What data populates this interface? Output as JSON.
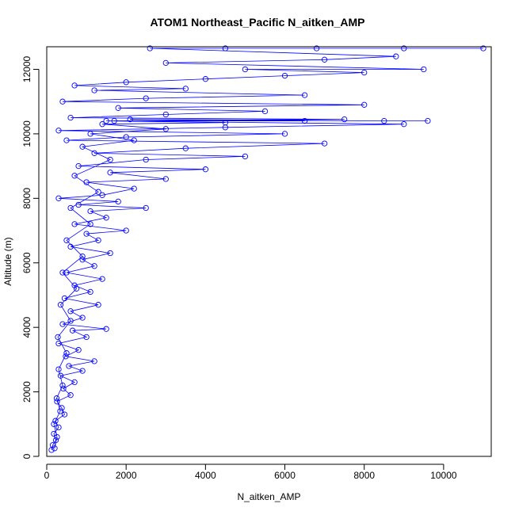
{
  "chart_data": {
    "type": "scatter",
    "title": "ATOM1 Northeast_Pacific N_aitken_AMP",
    "xlabel": "N_aitken_AMP",
    "ylabel": "Altitude (m)",
    "xlim": [
      0,
      11200
    ],
    "ylim": [
      0,
      12700
    ],
    "xticks": [
      0,
      2000,
      4000,
      6000,
      8000,
      10000
    ],
    "yticks": [
      0,
      2000,
      4000,
      6000,
      8000,
      10000,
      12000
    ],
    "grid": false,
    "legend": "none",
    "style": {
      "point_color": "#0000ff",
      "line_color": "#0000ff",
      "marker": "open-circle",
      "connected": true
    },
    "series": [
      {
        "points": [
          [
            120,
            200
          ],
          [
            150,
            350
          ],
          [
            230,
            500
          ],
          [
            180,
            700
          ],
          [
            300,
            900
          ],
          [
            220,
            1100
          ],
          [
            450,
            1300
          ],
          [
            380,
            1500
          ],
          [
            260,
            1700
          ],
          [
            600,
            1900
          ],
          [
            420,
            2100
          ],
          [
            700,
            2300
          ],
          [
            350,
            2500
          ],
          [
            900,
            2650
          ],
          [
            560,
            2800
          ],
          [
            1200,
            2950
          ],
          [
            480,
            3100
          ],
          [
            800,
            3300
          ],
          [
            300,
            3500
          ],
          [
            1000,
            3700
          ],
          [
            650,
            3900
          ],
          [
            1500,
            3950
          ],
          [
            400,
            4100
          ],
          [
            900,
            4300
          ],
          [
            600,
            4500
          ],
          [
            1300,
            4700
          ],
          [
            450,
            4900
          ],
          [
            1100,
            5100
          ],
          [
            700,
            5300
          ],
          [
            1400,
            5500
          ],
          [
            500,
            5700
          ],
          [
            1200,
            5900
          ],
          [
            900,
            6100
          ],
          [
            1600,
            6300
          ],
          [
            600,
            6500
          ],
          [
            1300,
            6700
          ],
          [
            1000,
            6900
          ],
          [
            2000,
            7000
          ],
          [
            700,
            7200
          ],
          [
            1500,
            7400
          ],
          [
            1100,
            7600
          ],
          [
            2500,
            7700
          ],
          [
            800,
            7800
          ],
          [
            1800,
            7900
          ],
          [
            300,
            8000
          ],
          [
            1400,
            8100
          ],
          [
            2200,
            8300
          ],
          [
            1000,
            8500
          ],
          [
            3000,
            8600
          ],
          [
            1600,
            8800
          ],
          [
            4000,
            8900
          ],
          [
            800,
            9000
          ],
          [
            2500,
            9200
          ],
          [
            5000,
            9300
          ],
          [
            1200,
            9400
          ],
          [
            3500,
            9550
          ],
          [
            7000,
            9700
          ],
          [
            500,
            9800
          ],
          [
            2000,
            9900
          ],
          [
            6000,
            10000
          ],
          [
            300,
            10100
          ],
          [
            4500,
            10200
          ],
          [
            9000,
            10300
          ],
          [
            1500,
            10400
          ],
          [
            7500,
            10450
          ],
          [
            600,
            10500
          ],
          [
            3000,
            10600
          ],
          [
            5500,
            10700
          ],
          [
            1800,
            10800
          ],
          [
            8000,
            10900
          ],
          [
            400,
            11000
          ],
          [
            2500,
            11100
          ],
          [
            6500,
            11200
          ],
          [
            1200,
            11350
          ],
          [
            3500,
            11400
          ],
          [
            700,
            11500
          ],
          [
            2000,
            11600
          ],
          [
            4000,
            11700
          ],
          [
            6000,
            11800
          ],
          [
            8000,
            11900
          ],
          [
            5000,
            12000
          ],
          [
            9500,
            12000
          ],
          [
            3000,
            12200
          ],
          [
            7000,
            12300
          ],
          [
            8800,
            12400
          ],
          [
            2600,
            12650
          ],
          [
            4500,
            12650
          ],
          [
            6800,
            12650
          ],
          [
            9000,
            12650
          ],
          [
            11000,
            12650
          ]
        ]
      },
      {
        "points": [
          [
            200,
            250
          ],
          [
            260,
            600
          ],
          [
            180,
            1000
          ],
          [
            340,
            1400
          ],
          [
            250,
            1800
          ],
          [
            400,
            2200
          ],
          [
            300,
            2700
          ],
          [
            500,
            3200
          ],
          [
            280,
            3700
          ],
          [
            600,
            4200
          ],
          [
            350,
            4700
          ],
          [
            750,
            5200
          ],
          [
            400,
            5700
          ],
          [
            900,
            6200
          ],
          [
            500,
            6700
          ],
          [
            1100,
            7200
          ],
          [
            600,
            7700
          ],
          [
            1300,
            8200
          ],
          [
            700,
            8700
          ],
          [
            1600,
            9200
          ],
          [
            900,
            9600
          ],
          [
            2200,
            9800
          ],
          [
            1100,
            10000
          ],
          [
            3000,
            10150
          ],
          [
            1400,
            10300
          ],
          [
            4500,
            10350
          ],
          [
            1700,
            10400
          ],
          [
            6500,
            10400
          ],
          [
            2100,
            10450
          ],
          [
            8500,
            10400
          ],
          [
            9600,
            10400
          ]
        ]
      }
    ]
  }
}
